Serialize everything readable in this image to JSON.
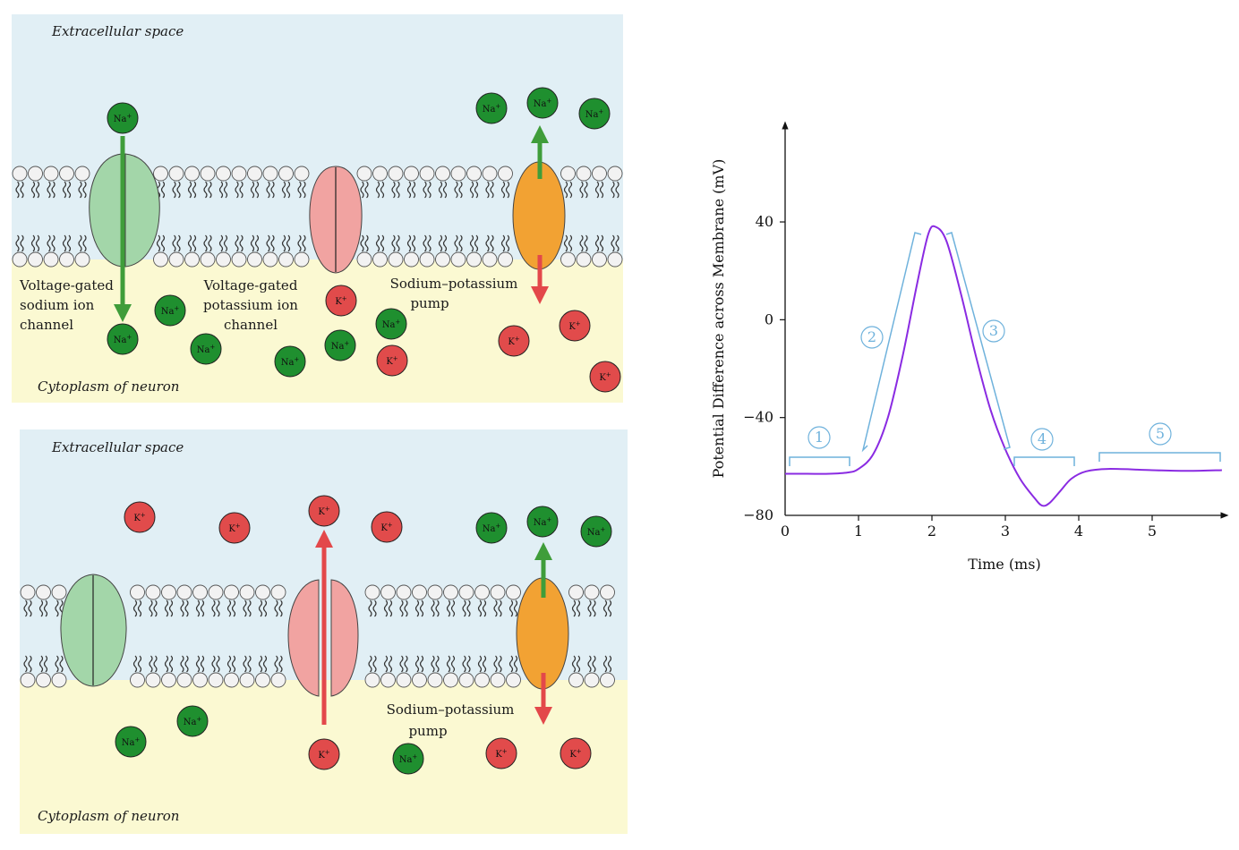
{
  "panels": {
    "top": {
      "extracellular": "Extracellular space",
      "cytoplasm": "Cytoplasm of neuron",
      "na_channel_label": [
        "Voltage-gated",
        "sodium ion",
        "channel"
      ],
      "k_channel_label": [
        "Voltage-gated",
        "potassium ion",
        "channel"
      ],
      "pump_label": [
        "Sodium–potassium",
        "pump"
      ]
    },
    "bottom": {
      "extracellular": "Extracellular space",
      "cytoplasm": "Cytoplasm of neuron",
      "pump_label": [
        "Sodium–potassium",
        "pump"
      ]
    }
  },
  "ions": {
    "na": "Na",
    "k": "K",
    "charge": "+"
  },
  "colors": {
    "extracellular_bg": "#e1eff5",
    "cytoplasm_bg": "#fbf9d2",
    "na_ion": "#1f8f2f",
    "k_ion": "#e14b4b",
    "na_channel": "#a3d6a9",
    "k_channel": "#f1a3a1",
    "pump": "#f2a233",
    "arrow_green": "#3f9d3a",
    "arrow_red": "#e3484a",
    "curve": "#8a2be2",
    "phase_bracket": "#6fb2dc"
  },
  "chart_data": {
    "type": "line",
    "xlabel": "Time (ms)",
    "ylabel": "Potential Difference across Membrane (mV)",
    "xlim": [
      0,
      6
    ],
    "ylim": [
      -80,
      40
    ],
    "xticks": [
      "0",
      "1",
      "2",
      "3",
      "4",
      "5"
    ],
    "yticks": [
      "40",
      "0",
      "−40",
      "−80"
    ],
    "x": [
      0,
      0.3,
      0.6,
      0.85,
      1.0,
      1.2,
      1.4,
      1.6,
      1.8,
      1.95,
      2.05,
      2.2,
      2.4,
      2.6,
      2.8,
      3.0,
      3.2,
      3.4,
      3.5,
      3.6,
      3.75,
      3.9,
      4.1,
      4.4,
      5.0,
      5.5,
      5.95
    ],
    "y": [
      -63,
      -63,
      -63,
      -62.5,
      -61,
      -55,
      -40,
      -15,
      15,
      35,
      38,
      32,
      10,
      -15,
      -37,
      -53,
      -65,
      -73,
      -76,
      -75,
      -70,
      -65,
      -62,
      -61,
      -61.5,
      -61.8,
      -61.5
    ],
    "phases": [
      "1",
      "2",
      "3",
      "4",
      "5"
    ]
  }
}
